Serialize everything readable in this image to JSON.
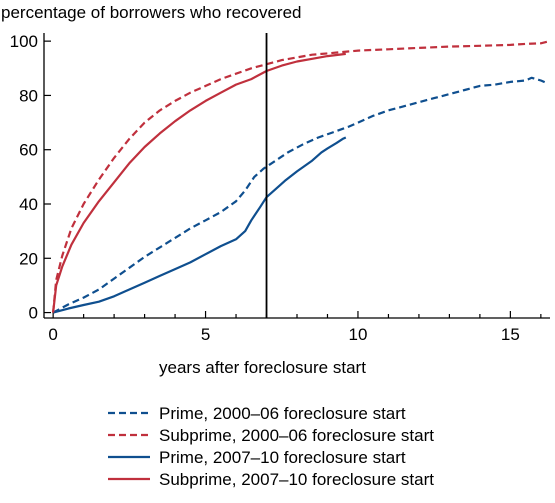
{
  "chart_data": {
    "type": "line",
    "ylabel": "percentage of borrowers who recovered",
    "xlabel": "years after foreclosure start",
    "xlim": [
      -0.3,
      16.3
    ],
    "ylim": [
      -2,
      103
    ],
    "x_ticks": [
      0,
      5,
      10,
      15
    ],
    "y_ticks": [
      0,
      20,
      40,
      60,
      80,
      100
    ],
    "grid": false,
    "legend_position": "bottom",
    "vline": {
      "x": 7.0
    },
    "series": [
      {
        "name": "Prime, 2000–06 foreclosure start",
        "color": "#0f4f8f",
        "dash": true,
        "points": [
          [
            0,
            0
          ],
          [
            0.5,
            3
          ],
          [
            1,
            5.5
          ],
          [
            1.5,
            8.5
          ],
          [
            2,
            12.5
          ],
          [
            2.5,
            16.5
          ],
          [
            3,
            20.5
          ],
          [
            3.5,
            24
          ],
          [
            4,
            27.5
          ],
          [
            4.5,
            31
          ],
          [
            5,
            34
          ],
          [
            5.5,
            37
          ],
          [
            6,
            41
          ],
          [
            6.3,
            45
          ],
          [
            6.6,
            50
          ],
          [
            6.9,
            53
          ],
          [
            7.3,
            56
          ],
          [
            7.7,
            59
          ],
          [
            8.2,
            62
          ],
          [
            8.7,
            64.5
          ],
          [
            9.2,
            66.5
          ],
          [
            9.7,
            68.5
          ],
          [
            10,
            70
          ],
          [
            10.5,
            72.5
          ],
          [
            11,
            74.5
          ],
          [
            11.5,
            76
          ],
          [
            12,
            77.5
          ],
          [
            12.5,
            79
          ],
          [
            13,
            80.5
          ],
          [
            13.5,
            82
          ],
          [
            14,
            83.5
          ],
          [
            14.5,
            84
          ],
          [
            15,
            85
          ],
          [
            15.5,
            85.5
          ],
          [
            15.7,
            86.5
          ],
          [
            16,
            85.5
          ],
          [
            16.2,
            84.5
          ]
        ]
      },
      {
        "name": "Subprime, 2000–06 foreclosure start",
        "color": "#c0303d",
        "dash": true,
        "points": [
          [
            0,
            0
          ],
          [
            0.1,
            12
          ],
          [
            0.3,
            21
          ],
          [
            0.6,
            31
          ],
          [
            1,
            40
          ],
          [
            1.5,
            49
          ],
          [
            2,
            57
          ],
          [
            2.5,
            64
          ],
          [
            3,
            70
          ],
          [
            3.5,
            74.5
          ],
          [
            4,
            78
          ],
          [
            4.5,
            81
          ],
          [
            5,
            83.5
          ],
          [
            5.5,
            86
          ],
          [
            6,
            88
          ],
          [
            6.5,
            90
          ],
          [
            7,
            91.5
          ],
          [
            7.5,
            93
          ],
          [
            8,
            94
          ],
          [
            8.5,
            95
          ],
          [
            9,
            95.5
          ],
          [
            9.5,
            96
          ],
          [
            10,
            96.5
          ],
          [
            11,
            97
          ],
          [
            12,
            97.5
          ],
          [
            13,
            98
          ],
          [
            14,
            98.3
          ],
          [
            15,
            98.6
          ],
          [
            15.5,
            99
          ],
          [
            16,
            99.2
          ],
          [
            16.3,
            100
          ]
        ]
      },
      {
        "name": "Prime, 2007–10 foreclosure start",
        "color": "#0f4f8f",
        "dash": false,
        "points": [
          [
            0,
            0
          ],
          [
            0.5,
            1.5
          ],
          [
            1,
            2.8
          ],
          [
            1.5,
            4
          ],
          [
            2,
            6
          ],
          [
            2.5,
            8.5
          ],
          [
            3,
            11
          ],
          [
            3.5,
            13.5
          ],
          [
            4,
            16
          ],
          [
            4.5,
            18.5
          ],
          [
            5,
            21.5
          ],
          [
            5.5,
            24.5
          ],
          [
            6,
            27
          ],
          [
            6.3,
            30
          ],
          [
            6.5,
            34
          ],
          [
            6.8,
            39
          ],
          [
            7,
            42.5
          ],
          [
            7.3,
            45.5
          ],
          [
            7.6,
            48.5
          ],
          [
            8,
            52
          ],
          [
            8.5,
            56
          ],
          [
            8.8,
            59
          ],
          [
            9,
            60.5
          ],
          [
            9.3,
            62.5
          ],
          [
            9.5,
            64
          ],
          [
            9.6,
            64.5
          ]
        ]
      },
      {
        "name": "Subprime, 2007–10 foreclosure start",
        "color": "#c0303d",
        "dash": false,
        "points": [
          [
            0,
            0
          ],
          [
            0.1,
            10
          ],
          [
            0.3,
            17
          ],
          [
            0.6,
            25
          ],
          [
            1,
            33
          ],
          [
            1.5,
            41
          ],
          [
            2,
            48
          ],
          [
            2.5,
            55
          ],
          [
            3,
            61
          ],
          [
            3.5,
            66
          ],
          [
            4,
            70.5
          ],
          [
            4.5,
            74.5
          ],
          [
            5,
            78
          ],
          [
            5.5,
            81
          ],
          [
            6,
            84
          ],
          [
            6.5,
            86
          ],
          [
            7,
            89
          ],
          [
            7.5,
            91
          ],
          [
            8,
            92.5
          ],
          [
            8.5,
            93.5
          ],
          [
            9,
            94.5
          ],
          [
            9.6,
            95.3
          ]
        ]
      }
    ]
  }
}
